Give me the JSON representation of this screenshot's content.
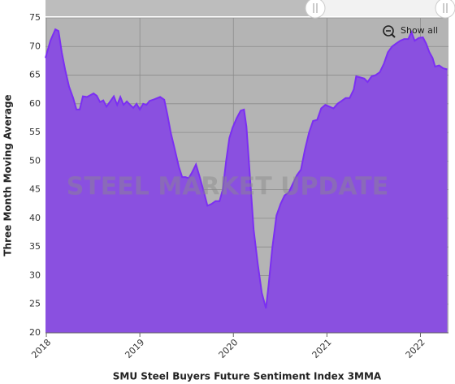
{
  "chart_data": {
    "type": "area",
    "y_label": "Three Month Moving Average",
    "x_label": "SMU Steel Buyers Future Sentiment Index 3MMA",
    "button": "Show all",
    "watermark": "STEEL MARKET UPDATE",
    "color": "#8a50e0",
    "line_color": "#7b2ff2",
    "grid": true,
    "xlim": [
      2017.991,
      2022.3
    ],
    "xticks": [
      2018,
      2019,
      2020,
      2021,
      2022
    ],
    "ylim": [
      20,
      75
    ],
    "yticks": [
      20,
      25,
      30,
      35,
      40,
      45,
      50,
      55,
      60,
      65,
      70,
      75
    ],
    "x": [
      2017.991,
      2018.043,
      2018.096,
      2018.13,
      2018.165,
      2018.2,
      2018.243,
      2018.287,
      2018.322,
      2018.357,
      2018.391,
      2018.435,
      2018.47,
      2018.504,
      2018.539,
      2018.574,
      2018.609,
      2018.643,
      2018.678,
      2018.722,
      2018.757,
      2018.791,
      2018.826,
      2018.861,
      2018.896,
      2018.93,
      2018.965,
      2019.0,
      2019.035,
      2019.07,
      2019.104,
      2019.157,
      2019.217,
      2019.261,
      2019.296,
      2019.33,
      2019.374,
      2019.417,
      2019.452,
      2019.487,
      2019.522,
      2019.557,
      2019.6,
      2019.635,
      2019.678,
      2019.722,
      2019.765,
      2019.809,
      2019.852,
      2019.887,
      2019.922,
      2019.957,
      2019.991,
      2020.035,
      2020.078,
      2020.113,
      2020.139,
      2020.174,
      2020.217,
      2020.261,
      2020.304,
      2020.348,
      2020.374,
      2020.417,
      2020.461,
      2020.504,
      2020.548,
      2020.591,
      2020.635,
      2020.678,
      2020.722,
      2020.765,
      2020.809,
      2020.852,
      2020.896,
      2020.939,
      2020.983,
      2021.026,
      2021.07,
      2021.113,
      2021.157,
      2021.2,
      2021.243,
      2021.287,
      2021.313,
      2021.357,
      2021.4,
      2021.435,
      2021.478,
      2021.522,
      2021.565,
      2021.609,
      2021.652,
      2021.696,
      2021.739,
      2021.783,
      2021.826,
      2021.87,
      2021.904,
      2021.939,
      2021.983,
      2022.026,
      2022.061,
      2022.096,
      2022.13,
      2022.157,
      2022.2,
      2022.243,
      2022.287
    ],
    "values": [
      68,
      71,
      73,
      72.7,
      69,
      66,
      63,
      61,
      59,
      59,
      61.3,
      61.2,
      61.5,
      61.8,
      61.4,
      60.3,
      60.6,
      59.5,
      60.3,
      61.3,
      59.8,
      61.2,
      59.8,
      60.4,
      59.8,
      59.3,
      60,
      59,
      60,
      59.8,
      60.5,
      60.8,
      61.2,
      60.7,
      58,
      55,
      52,
      49,
      47.2,
      47.2,
      47,
      48,
      49.4,
      47.5,
      45,
      42.2,
      42.5,
      43,
      43,
      45,
      50,
      54,
      55.8,
      57.5,
      58.8,
      59,
      56,
      48,
      38,
      32,
      27,
      24.3,
      28,
      35,
      40.5,
      42.5,
      44,
      44.5,
      46,
      47.5,
      48.5,
      52,
      55,
      57,
      57.2,
      59.2,
      59.8,
      59.5,
      59.2,
      60,
      60.5,
      61,
      61,
      62.5,
      64.8,
      64.6,
      64.4,
      63.8,
      64.8,
      65,
      65.5,
      67,
      69,
      70,
      70.5,
      71,
      71.3,
      71.3,
      72.5,
      71,
      71.5,
      71.6,
      70.5,
      69,
      68,
      66.5,
      66.7,
      66.2,
      66
    ]
  }
}
